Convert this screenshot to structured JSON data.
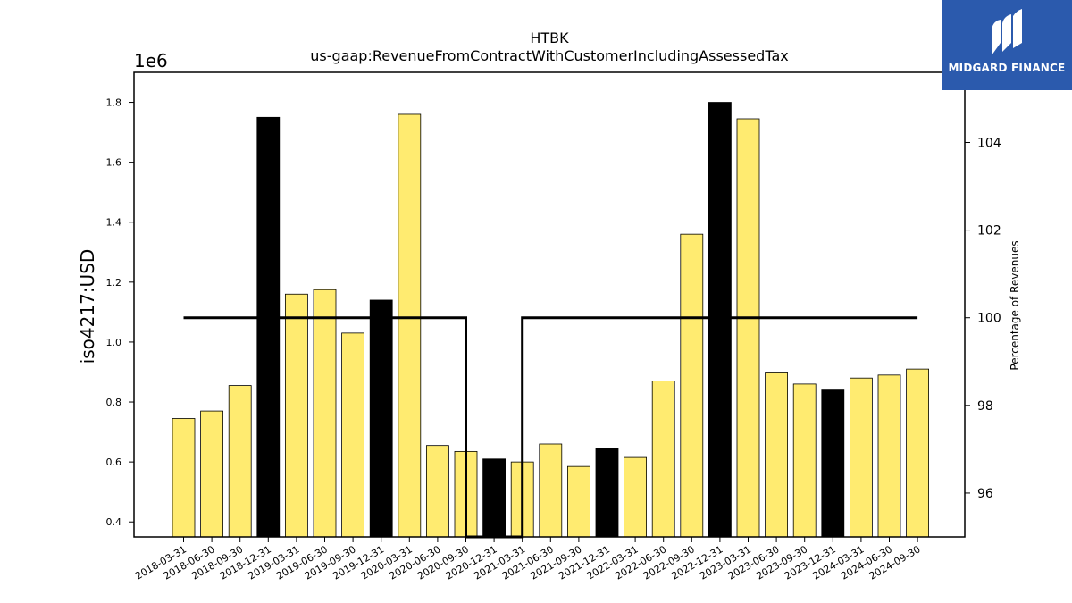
{
  "chart_data": {
    "type": "bar",
    "title": "HTBK",
    "subtitle": "us-gaap:RevenueFromContractWithCustomerIncludingAssessedTax",
    "ylabel": "iso4217:USD",
    "y_offset_label": "1e6",
    "y2label": "Percentage of Revenues",
    "ylim": [
      0.35,
      1.9
    ],
    "y_ticks": [
      "0.4",
      "0.6",
      "0.8",
      "1.0",
      "1.2",
      "1.4",
      "1.6",
      "1.8"
    ],
    "y2lim": [
      95,
      105.6
    ],
    "y2_ticks": [
      "96",
      "98",
      "100",
      "102",
      "104"
    ],
    "categories": [
      "2018-03-31",
      "2018-06-30",
      "2018-09-30",
      "2018-12-31",
      "2019-03-31",
      "2019-06-30",
      "2019-09-30",
      "2019-12-31",
      "2020-03-31",
      "2020-06-30",
      "2020-09-30",
      "2020-12-31",
      "2021-03-31",
      "2021-06-30",
      "2021-09-30",
      "2021-12-31",
      "2022-03-31",
      "2022-06-30",
      "2022-09-30",
      "2022-12-31",
      "2023-03-31",
      "2023-06-30",
      "2023-09-30",
      "2023-12-31",
      "2024-03-31",
      "2024-06-30",
      "2024-09-30"
    ],
    "values": [
      0.745,
      0.77,
      0.855,
      1.75,
      1.16,
      1.175,
      1.03,
      1.14,
      1.76,
      0.655,
      0.635,
      0.61,
      0.6,
      0.66,
      0.585,
      0.645,
      0.615,
      0.87,
      1.36,
      1.8,
      1.745,
      0.9,
      0.86,
      0.84,
      0.88,
      0.89,
      0.91
    ],
    "bar_highlight": [
      false,
      false,
      false,
      true,
      false,
      false,
      false,
      true,
      false,
      false,
      false,
      true,
      false,
      false,
      false,
      true,
      false,
      false,
      false,
      true,
      false,
      false,
      false,
      true,
      false,
      false,
      false
    ],
    "percentage_series": [
      {
        "x_from": "2018-03-31",
        "x_to": "2020-09-30",
        "value": 100
      },
      {
        "x_from": "2020-09-30",
        "x_to": "2020-09-30",
        "value": 95
      },
      {
        "x_from": "2021-03-31",
        "x_to": "2021-03-31",
        "value": 95
      },
      {
        "x_from": "2021-03-31",
        "x_to": "2024-09-30",
        "value": 100
      }
    ],
    "colors": {
      "bar": "#ffeb70",
      "highlight": "#000000",
      "edge": "#000000",
      "line": "#000000"
    }
  },
  "logo": {
    "text": "MIDGARD FINANCE",
    "color": "#2b5aad"
  }
}
